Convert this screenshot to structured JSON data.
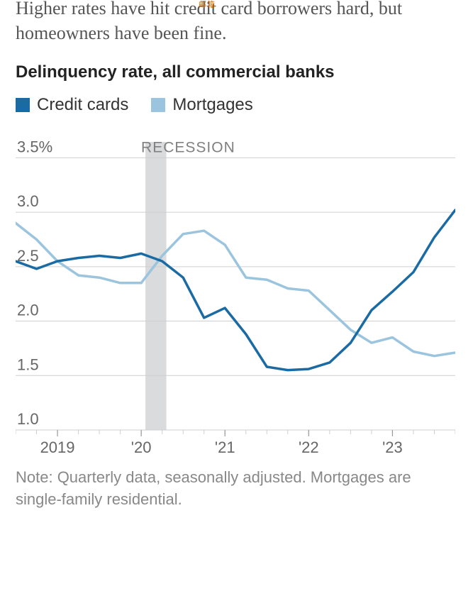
{
  "watermark": "邮箱",
  "subhead": "Higher rates have hit credit card borrowers hard, but homeowners have been fine.",
  "chart": {
    "type": "line",
    "title": "Delinquency rate, all commercial banks",
    "title_fontsize": 24,
    "recession_label": "RECESSION",
    "recession_color": "#d9dbdc",
    "recession_xspan": [
      2020.05,
      2020.3
    ],
    "background_color": "#ffffff",
    "grid_color": "#cfcfcf",
    "axis_font_color": "#666666",
    "axis_fontsize": 22,
    "label_color": "#808080",
    "y": {
      "min": 1.0,
      "max": 3.75,
      "ticks": [
        1.0,
        1.5,
        2.0,
        2.5,
        3.0,
        3.5
      ],
      "tick_labels": [
        "1.0",
        "1.5",
        "2.0",
        "2.5",
        "3.0",
        "3.5%"
      ]
    },
    "x": {
      "min": 2018.5,
      "max": 2023.75,
      "ticks": [
        2019,
        2020,
        2021,
        2022,
        2023
      ],
      "tick_labels": [
        "2019",
        "'20",
        "'21",
        "'22",
        "'23"
      ]
    },
    "series": [
      {
        "name": "Credit cards",
        "color": "#1a6aa4",
        "swatch_color": "#1a6aa4",
        "line_width": 3.5,
        "x": [
          2018.5,
          2018.75,
          2019.0,
          2019.25,
          2019.5,
          2019.75,
          2020.0,
          2020.25,
          2020.5,
          2020.75,
          2021.0,
          2021.25,
          2021.5,
          2021.75,
          2022.0,
          2022.25,
          2022.5,
          2022.75,
          2023.0,
          2023.25,
          2023.5,
          2023.75
        ],
        "y": [
          2.55,
          2.48,
          2.55,
          2.58,
          2.6,
          2.58,
          2.62,
          2.55,
          2.4,
          2.03,
          2.12,
          1.88,
          1.58,
          1.55,
          1.56,
          1.62,
          1.8,
          2.1,
          2.27,
          2.45,
          2.77,
          3.02
        ]
      },
      {
        "name": "Mortgages",
        "color": "#9bc4de",
        "swatch_color": "#9bc4de",
        "line_width": 3.5,
        "x": [
          2018.5,
          2018.75,
          2019.0,
          2019.25,
          2019.5,
          2019.75,
          2020.0,
          2020.25,
          2020.5,
          2020.75,
          2021.0,
          2021.25,
          2021.5,
          2021.75,
          2022.0,
          2022.25,
          2022.5,
          2022.75,
          2023.0,
          2023.25,
          2023.5,
          2023.75
        ],
        "y": [
          2.9,
          2.75,
          2.55,
          2.42,
          2.4,
          2.35,
          2.35,
          2.6,
          2.8,
          2.83,
          2.7,
          2.4,
          2.38,
          2.3,
          2.28,
          2.1,
          1.92,
          1.8,
          1.85,
          1.72,
          1.68,
          1.71
        ]
      }
    ],
    "legend": {
      "items": [
        "Credit cards",
        "Mortgages"
      ],
      "colors": [
        "#1a6aa4",
        "#9bc4de"
      ]
    }
  },
  "note": "Note: Quarterly data, seasonally adjusted. Mortgages are single-family residential."
}
